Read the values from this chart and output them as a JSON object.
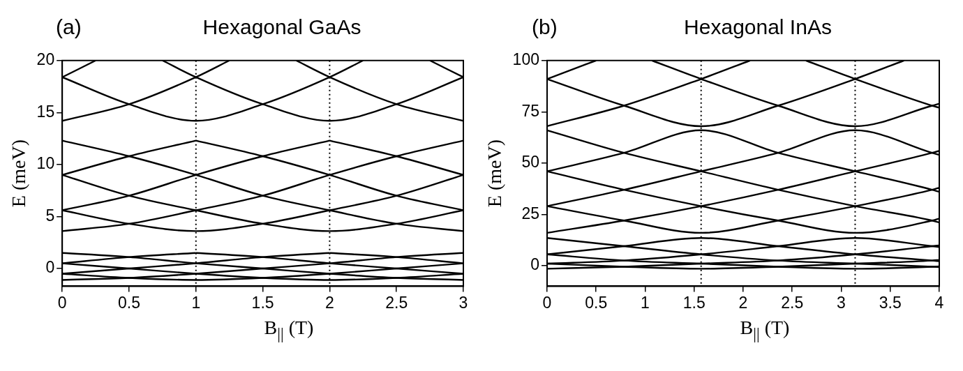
{
  "chart_data": [
    {
      "type": "line",
      "title": "Hexagonal GaAs",
      "annotations": [
        "(a)"
      ],
      "xlabel": "B$_{||}$ (T)",
      "ylabel": "E (meV)",
      "xlim": [
        0,
        3
      ],
      "ylim": [
        -1.7,
        20
      ],
      "xticks": [
        0,
        0.5,
        1,
        1.5,
        2,
        2.5,
        3
      ],
      "yticks": [
        0,
        5,
        10,
        15,
        20
      ],
      "legend": false,
      "marker": "none",
      "line_style": "solid",
      "ref_lines": [
        {
          "axis": "x",
          "value": 1,
          "color": "#000000",
          "line_style": "dotted"
        },
        {
          "axis": "x",
          "value": 2,
          "color": "#000000",
          "line_style": "dotted"
        }
      ],
      "x": [
        0,
        0.5,
        1,
        1.5,
        2,
        2.5,
        3
      ],
      "series": [
        {
          "color": "#000000",
          "values": [
            -1.1,
            -0.9,
            -0.5,
            0.0,
            0.5,
            1.1,
            1.5
          ]
        },
        {
          "color": "#000000",
          "values": [
            -0.5,
            -0.9,
            -1.1,
            -0.9,
            -0.5,
            0.0,
            0.5
          ]
        },
        {
          "color": "#000000",
          "values": [
            0.5,
            0.0,
            -0.5,
            -0.9,
            -1.1,
            -0.9,
            -0.5
          ]
        },
        {
          "color": "#000000",
          "values": [
            1.5,
            1.1,
            0.5,
            0.0,
            -0.5,
            -0.9,
            -1.1
          ]
        },
        {
          "color": "#000000",
          "x": [
            0,
            0.5,
            1
          ],
          "values": [
            0.5,
            1.1,
            1.5
          ]
        },
        {
          "color": "#000000",
          "x": [
            1,
            1.5,
            2,
            2.5,
            3
          ],
          "values": [
            1.5,
            1.1,
            0.5,
            0.0,
            -0.5
          ]
        },
        {
          "color": "#000000",
          "x": [
            0,
            0.5,
            1,
            1.5,
            2
          ],
          "values": [
            -0.5,
            0.0,
            0.5,
            1.1,
            1.5
          ]
        },
        {
          "color": "#000000",
          "x": [
            2,
            2.5,
            3
          ],
          "values": [
            1.5,
            1.1,
            0.5
          ]
        },
        {
          "color": "#000000",
          "values": [
            3.6,
            4.3,
            5.6,
            7.0,
            9.0,
            10.8,
            12.3
          ]
        },
        {
          "color": "#000000",
          "values": [
            5.6,
            4.3,
            3.6,
            4.3,
            5.6,
            7.0,
            9.0
          ]
        },
        {
          "color": "#000000",
          "values": [
            9.0,
            7.0,
            5.6,
            4.3,
            3.6,
            4.3,
            5.6
          ]
        },
        {
          "color": "#000000",
          "values": [
            12.3,
            10.8,
            9.0,
            7.0,
            5.6,
            4.3,
            3.6
          ]
        },
        {
          "color": "#000000",
          "x": [
            0,
            0.5,
            1
          ],
          "values": [
            9.0,
            10.8,
            12.3
          ]
        },
        {
          "color": "#000000",
          "x": [
            1,
            1.5,
            2,
            2.5,
            3
          ],
          "values": [
            12.3,
            10.8,
            9.0,
            7.0,
            5.6
          ]
        },
        {
          "color": "#000000",
          "x": [
            0,
            0.5,
            1,
            1.5,
            2
          ],
          "values": [
            5.6,
            7.0,
            9.0,
            10.8,
            12.3
          ]
        },
        {
          "color": "#000000",
          "x": [
            2,
            2.5,
            3
          ],
          "values": [
            12.3,
            10.8,
            9.0
          ]
        },
        {
          "color": "#000000",
          "x": [
            0,
            0.25
          ],
          "values": [
            18.4,
            20
          ]
        },
        {
          "color": "#000000",
          "x": [
            0,
            0.5,
            1,
            1.25
          ],
          "values": [
            14.2,
            15.8,
            18.4,
            20
          ]
        },
        {
          "color": "#000000",
          "x": [
            0,
            0.5,
            1,
            1.5,
            2,
            2.25
          ],
          "values": [
            18.4,
            15.8,
            14.2,
            15.8,
            18.4,
            20
          ]
        },
        {
          "color": "#000000",
          "x": [
            0.75,
            1,
            1.5,
            2,
            2.5,
            3
          ],
          "values": [
            20,
            18.4,
            15.8,
            14.2,
            15.8,
            18.4
          ]
        },
        {
          "color": "#000000",
          "x": [
            1.75,
            2,
            2.5,
            3
          ],
          "values": [
            20,
            18.4,
            15.8,
            14.2
          ]
        },
        {
          "color": "#000000",
          "x": [
            2.75,
            3
          ],
          "values": [
            20,
            18.4
          ]
        }
      ]
    },
    {
      "type": "line",
      "title": "Hexagonal InAs",
      "annotations": [
        "(b)"
      ],
      "xlabel": "B$_{||}$ (T)",
      "ylabel": "E (meV)",
      "xlim": [
        0,
        4
      ],
      "ylim": [
        -10,
        100
      ],
      "xticks": [
        0,
        0.5,
        1,
        1.5,
        2,
        2.5,
        3,
        3.5,
        4
      ],
      "yticks": [
        0,
        25,
        50,
        75,
        100
      ],
      "legend": false,
      "marker": "none",
      "line_style": "solid",
      "ref_lines": [
        {
          "axis": "x",
          "value": 1.571,
          "color": "#000000",
          "line_style": "dotted"
        },
        {
          "axis": "x",
          "value": 3.142,
          "color": "#000000",
          "line_style": "dotted"
        }
      ],
      "x": [
        0,
        0.785,
        1.571,
        2.356,
        3.142,
        3.927,
        4
      ],
      "series": [
        {
          "color": "#000000",
          "values": [
            -1.5,
            -0.5,
            1,
            2.5,
            5.5,
            9.5,
            9.9
          ]
        },
        {
          "color": "#000000",
          "values": [
            1,
            -0.5,
            -1.5,
            -0.5,
            1,
            2.5,
            2.8
          ]
        },
        {
          "color": "#000000",
          "values": [
            5.5,
            2.5,
            1,
            -0.5,
            -1.5,
            -0.5,
            -0.3
          ]
        },
        {
          "color": "#000000",
          "values": [
            13.5,
            9.5,
            5.5,
            2.5,
            1,
            -0.5,
            -0.7
          ]
        },
        {
          "color": "#000000",
          "values": [
            5.5,
            9.5,
            13.5,
            9.5,
            5.5,
            2.5,
            2.2
          ]
        },
        {
          "color": "#000000",
          "values": [
            1,
            2.5,
            5.5,
            9.5,
            13.5,
            9.5,
            9.1
          ]
        },
        {
          "color": "#000000",
          "values": [
            16,
            22,
            29,
            37,
            46,
            55,
            56
          ]
        },
        {
          "color": "#000000",
          "values": [
            29,
            22,
            16,
            22,
            29,
            37,
            38
          ]
        },
        {
          "color": "#000000",
          "values": [
            46,
            37,
            29,
            22,
            16,
            22,
            23
          ]
        },
        {
          "color": "#000000",
          "values": [
            66,
            55,
            46,
            37,
            29,
            22,
            21
          ]
        },
        {
          "color": "#000000",
          "values": [
            46,
            55,
            66,
            55,
            46,
            37,
            36
          ]
        },
        {
          "color": "#000000",
          "values": [
            29,
            37,
            46,
            55,
            66,
            55,
            54
          ]
        },
        {
          "color": "#000000",
          "x": [
            0,
            0.5
          ],
          "values": [
            91,
            100
          ]
        },
        {
          "color": "#000000",
          "x": [
            0,
            0.785,
            1.571,
            2.07
          ],
          "values": [
            68,
            78,
            91,
            100
          ]
        },
        {
          "color": "#000000",
          "x": [
            0,
            0.785,
            1.571,
            2.356,
            3.142,
            3.64
          ],
          "values": [
            91,
            78,
            68,
            78,
            91,
            100
          ]
        },
        {
          "color": "#000000",
          "x": [
            1.07,
            1.571,
            2.356,
            3.142,
            3.927,
            4
          ],
          "values": [
            100,
            91,
            78,
            68,
            78,
            79
          ]
        },
        {
          "color": "#000000",
          "x": [
            2.64,
            3.142,
            3.927,
            4
          ],
          "values": [
            100,
            91,
            78,
            77
          ]
        }
      ]
    }
  ]
}
